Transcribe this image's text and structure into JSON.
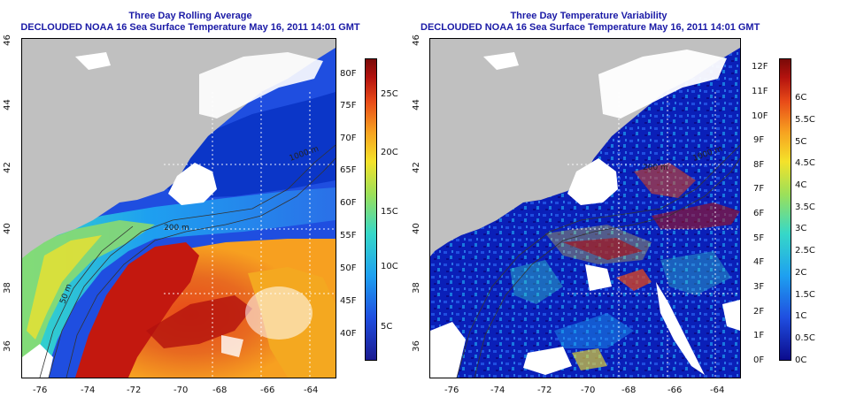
{
  "left_panel": {
    "title": "Three Day Rolling Average",
    "subtitle": "DECLOUDED NOAA 16 Sea Surface Temperature May 16, 2011 14:01 GMT",
    "lon_ticks": [
      "-76",
      "-74",
      "-72",
      "-70",
      "-68",
      "-66",
      "-64"
    ],
    "lat_ticks": [
      "46",
      "44",
      "42",
      "40",
      "38",
      "36"
    ],
    "contour_labels": [
      "1000 m",
      "200 m",
      "50 m"
    ],
    "colorbar_f": [
      "40F",
      "45F",
      "50F",
      "55F",
      "60F",
      "65F",
      "70F",
      "75F",
      "80F"
    ],
    "colorbar_c": [
      "5C",
      "10C",
      "15C",
      "20C",
      "25C"
    ]
  },
  "right_panel": {
    "title": "Three Day Temperature Variability",
    "subtitle": "DECLOUDED NOAA 16 Sea Surface Temperature May 16, 2011 14:01 GMT",
    "lon_ticks": [
      "-76",
      "-74",
      "-72",
      "-70",
      "-68",
      "-66",
      "-64"
    ],
    "lat_ticks": [
      "46",
      "44",
      "42",
      "40",
      "38",
      "36"
    ],
    "contour_labels": [
      "1000 m",
      "200 m"
    ],
    "colorbar_f": [
      "0F",
      "1F",
      "2F",
      "3F",
      "4F",
      "5F",
      "6F",
      "7F",
      "8F",
      "9F",
      "10F",
      "11F",
      "12F"
    ],
    "colorbar_c": [
      "0C",
      "0.5C",
      "1C",
      "1.5C",
      "2C",
      "2.5C",
      "3C",
      "3.5C",
      "4C",
      "4.5C",
      "5C",
      "5.5C",
      "6C"
    ]
  },
  "colors": {
    "title_blue": "#1a1aa6",
    "land": "#c0c0c0",
    "cloud": "#ffffff",
    "sst_scale": [
      "#0b0b8c",
      "#1f4ee0",
      "#1ea0f0",
      "#36d8c8",
      "#9be05a",
      "#f4e22a",
      "#f7a020",
      "#e84a18",
      "#b3120e",
      "#7a0a08"
    ]
  }
}
